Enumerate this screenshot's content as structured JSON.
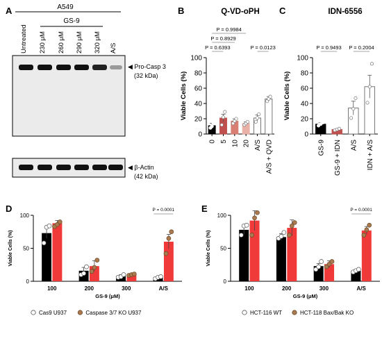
{
  "panel_a": {
    "letter": "A",
    "cell_line": "A549",
    "compound": "GS-9",
    "lanes": [
      "Untreated",
      "230 μM",
      "260 μM",
      "290 μM",
      "320 μM",
      "A/S"
    ],
    "blot_label_1": "Pro-Casp 3",
    "blot_size_1": "(32 kDa)",
    "blot_label_2": "β-Actin",
    "blot_size_2": "(42 kDa)"
  },
  "chart_data": [
    {
      "panel": "B",
      "type": "bar",
      "title": "Q-VD-oPH",
      "ylabel": "Viable Cells (%)",
      "ylim": [
        0,
        100
      ],
      "yticks": [
        0,
        20,
        40,
        60,
        80,
        100
      ],
      "categories": [
        "0",
        "5",
        "10",
        "20",
        "A/S",
        "A/S + QVD"
      ],
      "values": [
        11,
        21,
        17,
        14,
        21,
        46
      ],
      "errors": [
        3,
        5,
        3,
        2,
        4,
        3
      ],
      "points": [
        [
          8,
          10,
          14
        ],
        [
          12,
          22,
          29
        ],
        [
          14,
          17,
          20
        ],
        [
          12,
          14,
          16
        ],
        [
          16,
          21,
          26
        ],
        [
          43,
          46,
          49
        ]
      ],
      "colors": [
        "#000000",
        "#c0504d",
        "#d87e72",
        "#eab1a6",
        "#ffffff",
        "#ffffff"
      ],
      "pvalues": [
        {
          "label": "P = 0.6393",
          "from": 0,
          "to": 1
        },
        {
          "label": "P = 0.8929",
          "from": 0,
          "to": 2
        },
        {
          "label": "P = 0.9984",
          "from": 0,
          "to": 3
        },
        {
          "label": "P = 0.0123",
          "from": 4,
          "to": 5
        }
      ]
    },
    {
      "panel": "C",
      "type": "bar",
      "title": "IDN-6556",
      "ylabel": "Viable Cells (%)",
      "ylim": [
        0,
        100
      ],
      "yticks": [
        0,
        20,
        40,
        60,
        80,
        100
      ],
      "categories": [
        "GS-9",
        "GS-9 + IDN",
        "A/S",
        "IDN + A/S"
      ],
      "values": [
        13,
        6,
        34,
        62
      ],
      "errors": [
        2,
        1,
        9,
        15
      ],
      "points": [
        [
          11,
          13,
          15
        ],
        [
          5,
          6,
          7
        ],
        [
          21,
          33,
          47
        ],
        [
          41,
          62,
          92
        ]
      ],
      "colors": [
        "#000000",
        "#c0504d",
        "#ffffff",
        "#ffffff"
      ],
      "pvalues": [
        {
          "label": "P = 0.9493",
          "from": 0,
          "to": 1
        },
        {
          "label": "P = 0.2004",
          "from": 2,
          "to": 3
        }
      ]
    },
    {
      "panel": "D",
      "type": "bar",
      "ylabel": "Viable Cells (%)",
      "xlabel": "GS-9 (μM)",
      "ylim": [
        0,
        100
      ],
      "yticks": [
        0,
        50,
        100
      ],
      "categories": [
        "100",
        "200",
        "300",
        "A/S"
      ],
      "series": [
        {
          "name": "Cas9 U937",
          "values": [
            73,
            16,
            8,
            6
          ],
          "errors": [
            8,
            5,
            2,
            1
          ],
          "points": [
            [
              58,
              82,
              84
            ],
            [
              10,
              12,
              22
            ],
            [
              6,
              7,
              10
            ],
            [
              4,
              6,
              7
            ]
          ],
          "color": "#000000",
          "marker": "#ffffff"
        },
        {
          "name": "Caspase 3/7 KO U937",
          "values": [
            88,
            23,
            10,
            60
          ],
          "errors": [
            4,
            8,
            1,
            11
          ],
          "points": [
            [
              83,
              86,
              90
            ],
            [
              15,
              21,
              32
            ],
            [
              9,
              10,
              11
            ],
            [
              42,
              65,
              75
            ]
          ],
          "color": "#f03a3a",
          "marker": "#a97a4f"
        }
      ],
      "pvalues": [
        {
          "label": "P = 0.0001",
          "category": 3
        }
      ]
    },
    {
      "panel": "E",
      "type": "bar",
      "ylabel": "Viable Cells (%)",
      "xlabel": "GS-9 (μM)",
      "ylim": [
        0,
        100
      ],
      "yticks": [
        0,
        50,
        100
      ],
      "categories": [
        "100",
        "200",
        "300",
        "A/S"
      ],
      "series": [
        {
          "name": "HCT-116 WT",
          "values": [
            78,
            67,
            23,
            16
          ],
          "errors": [
            7,
            5,
            4,
            2
          ],
          "points": [
            [
              70,
              84,
              85
            ],
            [
              65,
              68,
              74
            ],
            [
              18,
              22,
              30
            ],
            [
              14,
              16,
              18
            ]
          ],
          "color": "#000000",
          "marker": "#ffffff"
        },
        {
          "name": "HCT-118 Bax/Bak KO",
          "values": [
            92,
            81,
            26,
            77
          ],
          "errors": [
            15,
            12,
            5,
            6
          ],
          "points": [
            [
              70,
              96,
              104
            ],
            [
              70,
              84,
              89
            ],
            [
              22,
              26,
              30
            ],
            [
              70,
              78,
              85
            ]
          ],
          "color": "#f03a3a",
          "marker": "#a97a4f"
        }
      ],
      "pvalues": [
        {
          "label": "P = 0.0001",
          "category": 3
        }
      ]
    }
  ]
}
